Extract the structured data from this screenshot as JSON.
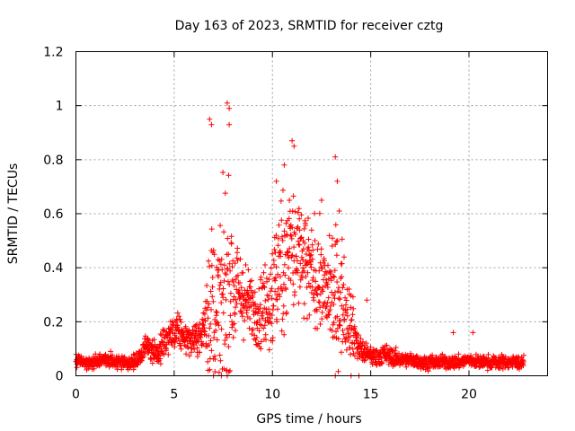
{
  "chart_data": {
    "type": "scatter",
    "title": "Day 163 of 2023, SRMTID for receiver cztg",
    "xlabel": "GPS time / hours",
    "ylabel": "SRMTID / TECUs",
    "xlim": [
      0,
      24
    ],
    "ylim": [
      0,
      1.2
    ],
    "x_ticks": [
      0,
      5,
      10,
      15,
      20
    ],
    "y_ticks": [
      0,
      0.2,
      0.4,
      0.6,
      0.8,
      1,
      1.2
    ],
    "x_tick_labels": [
      "0",
      "5",
      "10",
      "15",
      "20"
    ],
    "y_tick_labels": [
      "0",
      "0.2",
      "0.4",
      "0.6",
      "0.8",
      "1",
      "1.2"
    ],
    "grid": true,
    "marker": "+",
    "color": "#ff0000",
    "envelope": {
      "description_hours": "approximate median / spread of the point cloud per time segment",
      "x": [
        0,
        0.5,
        1,
        1.5,
        2,
        2.5,
        3,
        3.3,
        3.6,
        3.9,
        4.2,
        4.5,
        4.8,
        5.2,
        5.6,
        6.0,
        6.4,
        6.8,
        7.2,
        7.6,
        7.8,
        8.0,
        8.4,
        8.8,
        9.2,
        9.6,
        10.0,
        10.4,
        10.8,
        11.2,
        11.6,
        12.0,
        12.4,
        12.8,
        13.2,
        13.6,
        14.0,
        14.4,
        14.8,
        15.2,
        15.6,
        16.0,
        16.5,
        17.0,
        17.5,
        18.0,
        18.5,
        19.0,
        19.5,
        20.0,
        20.5,
        21.0,
        21.5,
        22.0,
        22.5,
        22.8
      ],
      "median": [
        0.06,
        0.05,
        0.05,
        0.06,
        0.05,
        0.05,
        0.05,
        0.07,
        0.12,
        0.1,
        0.08,
        0.12,
        0.15,
        0.16,
        0.14,
        0.13,
        0.15,
        0.28,
        0.24,
        0.3,
        0.35,
        0.33,
        0.3,
        0.26,
        0.24,
        0.26,
        0.3,
        0.4,
        0.48,
        0.45,
        0.4,
        0.38,
        0.35,
        0.3,
        0.3,
        0.28,
        0.2,
        0.1,
        0.08,
        0.07,
        0.08,
        0.07,
        0.06,
        0.06,
        0.05,
        0.05,
        0.05,
        0.05,
        0.05,
        0.06,
        0.05,
        0.05,
        0.05,
        0.05,
        0.05,
        0.05
      ],
      "spread": [
        0.02,
        0.02,
        0.02,
        0.02,
        0.02,
        0.02,
        0.02,
        0.03,
        0.03,
        0.04,
        0.04,
        0.05,
        0.05,
        0.05,
        0.04,
        0.04,
        0.05,
        0.25,
        0.2,
        0.3,
        0.3,
        0.2,
        0.12,
        0.1,
        0.1,
        0.12,
        0.18,
        0.22,
        0.22,
        0.2,
        0.18,
        0.15,
        0.14,
        0.14,
        0.2,
        0.15,
        0.1,
        0.04,
        0.03,
        0.03,
        0.03,
        0.03,
        0.02,
        0.02,
        0.02,
        0.02,
        0.02,
        0.02,
        0.02,
        0.02,
        0.02,
        0.02,
        0.02,
        0.02,
        0.02,
        0.02
      ]
    },
    "notable_points": [
      {
        "x": 7.7,
        "y": 1.01
      },
      {
        "x": 7.8,
        "y": 0.99
      },
      {
        "x": 6.8,
        "y": 0.95
      },
      {
        "x": 6.9,
        "y": 0.93
      },
      {
        "x": 7.8,
        "y": 0.93
      },
      {
        "x": 11.0,
        "y": 0.87
      },
      {
        "x": 11.1,
        "y": 0.85
      },
      {
        "x": 13.2,
        "y": 0.81
      },
      {
        "x": 10.6,
        "y": 0.78
      },
      {
        "x": 10.2,
        "y": 0.72
      },
      {
        "x": 13.3,
        "y": 0.72
      },
      {
        "x": 12.5,
        "y": 0.65
      },
      {
        "x": 13.4,
        "y": 0.61
      },
      {
        "x": 14.8,
        "y": 0.28
      },
      {
        "x": 19.2,
        "y": 0.16
      },
      {
        "x": 20.2,
        "y": 0.16
      },
      {
        "x": 7.0,
        "y": 0.0
      },
      {
        "x": 7.4,
        "y": 0.0
      },
      {
        "x": 7.7,
        "y": 0.0
      },
      {
        "x": 13.2,
        "y": 0.0
      },
      {
        "x": 14.0,
        "y": 0.0
      },
      {
        "x": 14.4,
        "y": 0.0
      }
    ]
  }
}
